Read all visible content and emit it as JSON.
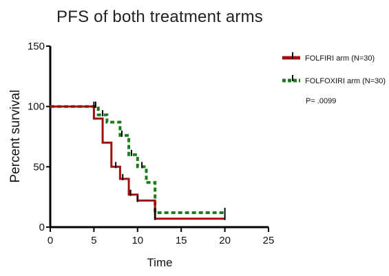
{
  "chart_data": {
    "type": "line",
    "title": "PFS of both treatment arms",
    "xlabel": "Time",
    "ylabel": "Percent survival",
    "xlim": [
      0,
      25
    ],
    "ylim": [
      0,
      150
    ],
    "x_ticks": [
      "0",
      "5",
      "10",
      "15",
      "20",
      "25"
    ],
    "y_ticks": [
      "0",
      "50",
      "100",
      "150"
    ],
    "grid": false,
    "legend_position": "top-right",
    "annotation": "P= .0099",
    "series": [
      {
        "name": "FOLFIRI arm (N=30)",
        "color": "#a01010",
        "style": "solid-step",
        "x": [
          0,
          5,
          5,
          6,
          6,
          7,
          7,
          8,
          8,
          9,
          9,
          10,
          10,
          12,
          12,
          20
        ],
        "y": [
          100,
          100,
          90,
          90,
          70,
          70,
          50,
          50,
          40,
          40,
          27,
          27,
          22,
          22,
          7,
          7
        ],
        "censor_x": [
          5,
          7.5,
          8.3,
          9.2,
          10,
          12,
          20
        ],
        "censor_y": [
          100,
          50,
          40,
          27,
          22,
          7,
          7
        ]
      },
      {
        "name": "FOLFOXIRI arm (N=30)",
        "color": "#1e7a1e",
        "style": "dashed-step",
        "x": [
          0,
          5.5,
          5.5,
          6.5,
          6.5,
          8,
          8,
          9,
          9,
          10,
          10,
          11,
          11,
          12,
          12,
          20
        ],
        "y": [
          100,
          100,
          93,
          93,
          87,
          87,
          76,
          76,
          60,
          60,
          50,
          50,
          37,
          37,
          12,
          12
        ],
        "censor_x": [
          5.2,
          6,
          8.2,
          9.3,
          10.5,
          12,
          20
        ],
        "censor_y": [
          100,
          93,
          76,
          60,
          50,
          12,
          12
        ]
      }
    ]
  }
}
